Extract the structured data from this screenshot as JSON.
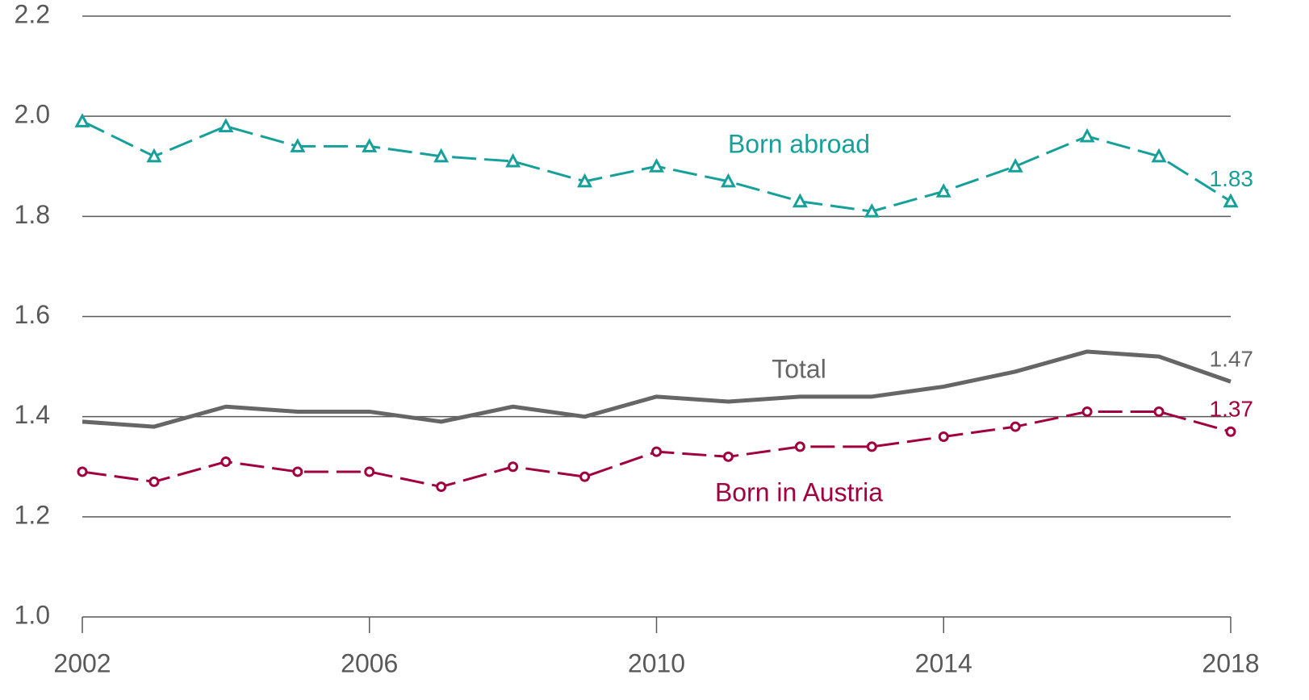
{
  "chart_data": {
    "type": "line",
    "x": [
      2002,
      2003,
      2004,
      2005,
      2006,
      2007,
      2008,
      2009,
      2010,
      2011,
      2012,
      2013,
      2014,
      2015,
      2016,
      2017,
      2018
    ],
    "xlim": [
      2002,
      2018
    ],
    "xticks": [
      2002,
      2006,
      2010,
      2014,
      2018
    ],
    "ylim": [
      1,
      2.2
    ],
    "yticks": [
      {
        "value": 1,
        "label": "1.0"
      },
      1.2,
      1.4,
      1.6,
      1.8,
      {
        "value": 2,
        "label": "2.0"
      },
      2.2
    ],
    "grid": true,
    "series": [
      {
        "name": "Born abroad",
        "color": "#17a09a",
        "marker": "triangle",
        "dashed": true,
        "values": [
          1.99,
          1.92,
          1.98,
          1.94,
          1.94,
          1.92,
          1.91,
          1.87,
          1.9,
          1.87,
          1.83,
          1.81,
          1.85,
          1.9,
          1.96,
          1.92,
          1.83
        ]
      },
      {
        "name": "Total",
        "color": "#666666",
        "marker": null,
        "dashed": false,
        "values": [
          1.39,
          1.38,
          1.42,
          1.41,
          1.41,
          1.39,
          1.42,
          1.4,
          1.44,
          1.43,
          1.44,
          1.44,
          1.46,
          1.49,
          1.53,
          1.52,
          1.47
        ]
      },
      {
        "name": "Born in Austria",
        "color": "#a0003f",
        "marker": "circle",
        "dashed": true,
        "values": [
          1.29,
          1.27,
          1.31,
          1.29,
          1.29,
          1.26,
          1.3,
          1.28,
          1.33,
          1.32,
          1.34,
          1.34,
          1.36,
          1.38,
          1.41,
          1.41,
          1.37
        ]
      }
    ]
  }
}
